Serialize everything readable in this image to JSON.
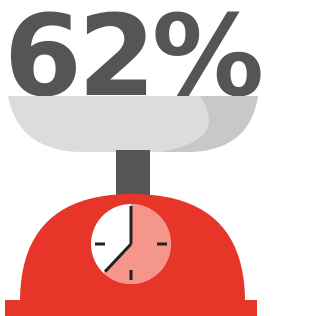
{
  "chart_data": {
    "type": "gauge",
    "values": [
      62
    ],
    "value_labels": [
      "62%"
    ],
    "ylim": [
      0,
      100
    ],
    "color": "#f4968a"
  }
}
